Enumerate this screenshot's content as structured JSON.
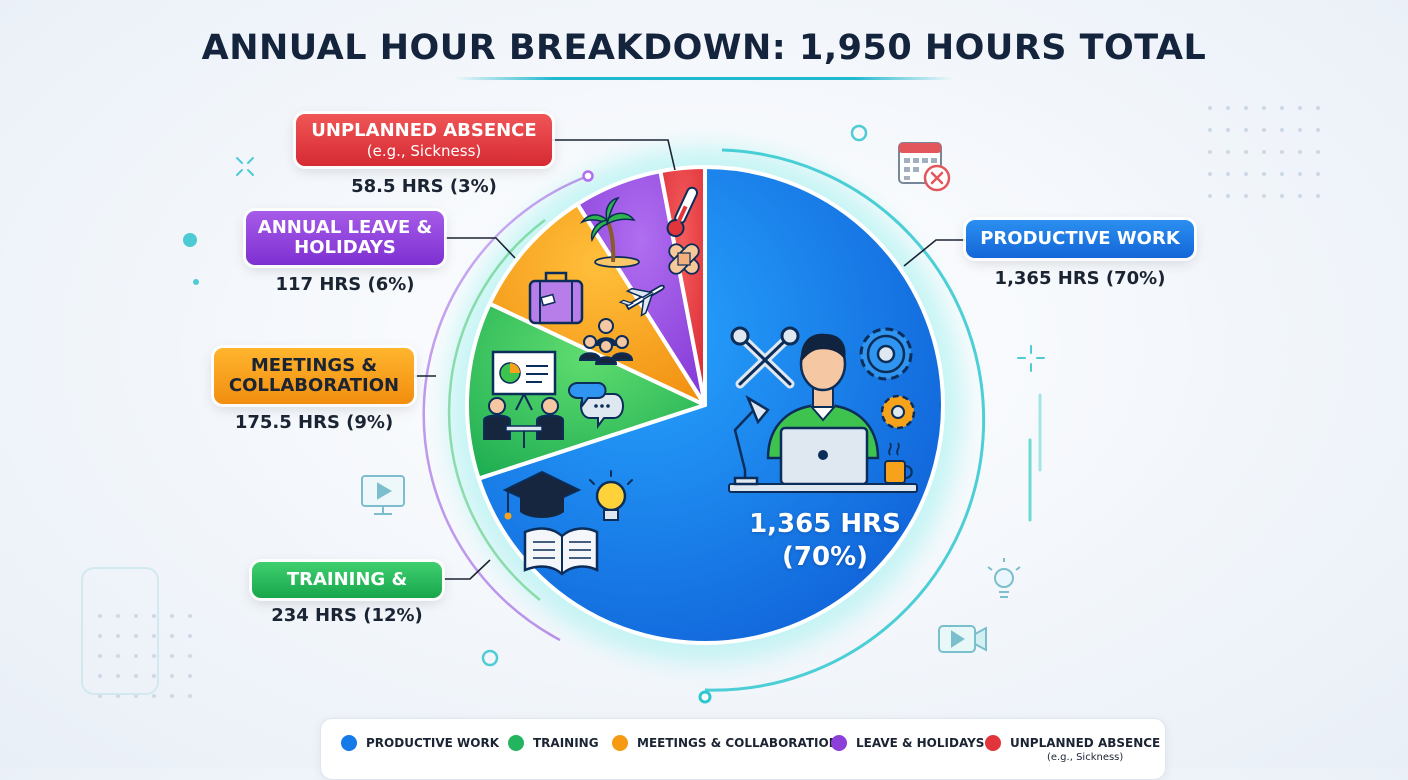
{
  "title": "ANNUAL HOUR BREAKDOWN: 1,950 HOURS TOTAL",
  "center_label": [
    "1,365 HRS",
    "(70%)"
  ],
  "labels": {
    "productive": {
      "name": "PRODUCTIVE WORK",
      "hours": "1,365 HRS (70%)"
    },
    "training": {
      "name": "TRAINING &",
      "hours": "234 HRS (12%)"
    },
    "meetings": {
      "name_lines": [
        "MEETINGS &",
        "COLLABORATION"
      ],
      "hours": "175.5 HRS (9%)"
    },
    "leave": {
      "name_lines": [
        "ANNUAL LEAVE &",
        "HOLIDAYS"
      ],
      "hours": "117 HRS (6%)"
    },
    "absence": {
      "name": "UNPLANNED ABSENCE",
      "note": "(e.g., Sickness)",
      "hours": "58.5 HRS (3%)"
    }
  },
  "legend": [
    {
      "label": "PRODUCTIVE WORK",
      "color": "#1679e8"
    },
    {
      "label": "TRAINING",
      "color": "#22b45e"
    },
    {
      "label": "MEETINGS & COLLABORATION",
      "color": "#f59a12"
    },
    {
      "label": "LEAVE & HOLIDAYS",
      "color": "#8c3fd9"
    },
    {
      "label": "UNPLANNED ABSENCE",
      "color": "#e2343b",
      "note": "(e.g., Sickness)"
    }
  ],
  "chart_data": {
    "type": "pie",
    "title": "ANNUAL HOUR BREAKDOWN: 1,950 HOURS TOTAL",
    "total": 1950,
    "categories": [
      "PRODUCTIVE WORK",
      "TRAINING",
      "MEETINGS & COLLABORATION",
      "LEAVE & HOLIDAYS",
      "UNPLANNED ABSENCE"
    ],
    "values": [
      1365,
      234,
      175.5,
      117,
      58.5
    ],
    "percent": [
      70,
      12,
      9,
      6,
      3
    ],
    "colors": [
      "#1679e8",
      "#22b45e",
      "#f59a12",
      "#8c3fd9",
      "#e2343b"
    ],
    "legend_position": "bottom"
  },
  "icons": [
    "wrench-icon",
    "gear-icon",
    "worker-at-laptop-icon",
    "coffee-cup-icon",
    "desk-lamp-icon",
    "graduation-cap-icon",
    "book-icon",
    "lightbulb-icon",
    "presentation-board-icon",
    "meeting-people-icon",
    "chat-bubbles-icon",
    "suitcase-icon",
    "group-icon",
    "palm-tree-icon",
    "airplane-icon",
    "thermometer-icon",
    "bandage-icon",
    "calendar-cancel-icon"
  ]
}
